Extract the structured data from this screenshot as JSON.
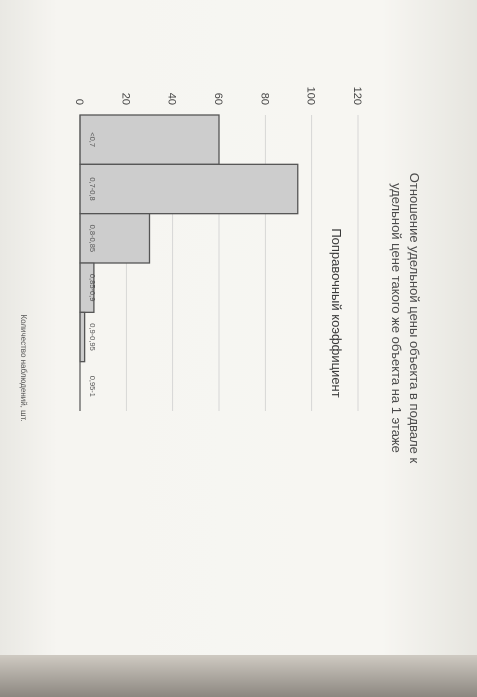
{
  "chart_data": {
    "type": "bar",
    "title": "Отношение удельной цены объекта в подвале к удельной цене такого же объекта на 1 этаже",
    "title_lines": [
      "Отношение удельной цены объекта в подвале к",
      "удельной цене такого же объекта на 1 этаже"
    ],
    "xlabel": "Поправочный коэффициент",
    "ylabel": "Количество наблюдений, шт.",
    "categories": [
      "<0,7",
      "0,7-0,8",
      "0,8-0,85",
      "0,85-0,9",
      "0,9-0,95",
      "0,95-1"
    ],
    "values": [
      60,
      94,
      30,
      6,
      2,
      0
    ],
    "ylim": [
      0,
      120
    ],
    "yticks": [
      0,
      20,
      40,
      60,
      80,
      100,
      120
    ],
    "grid": true,
    "bar_color": "#cdcdcd",
    "bar_edge_color": "#555555",
    "orientation": "rotated-90-clockwise"
  }
}
